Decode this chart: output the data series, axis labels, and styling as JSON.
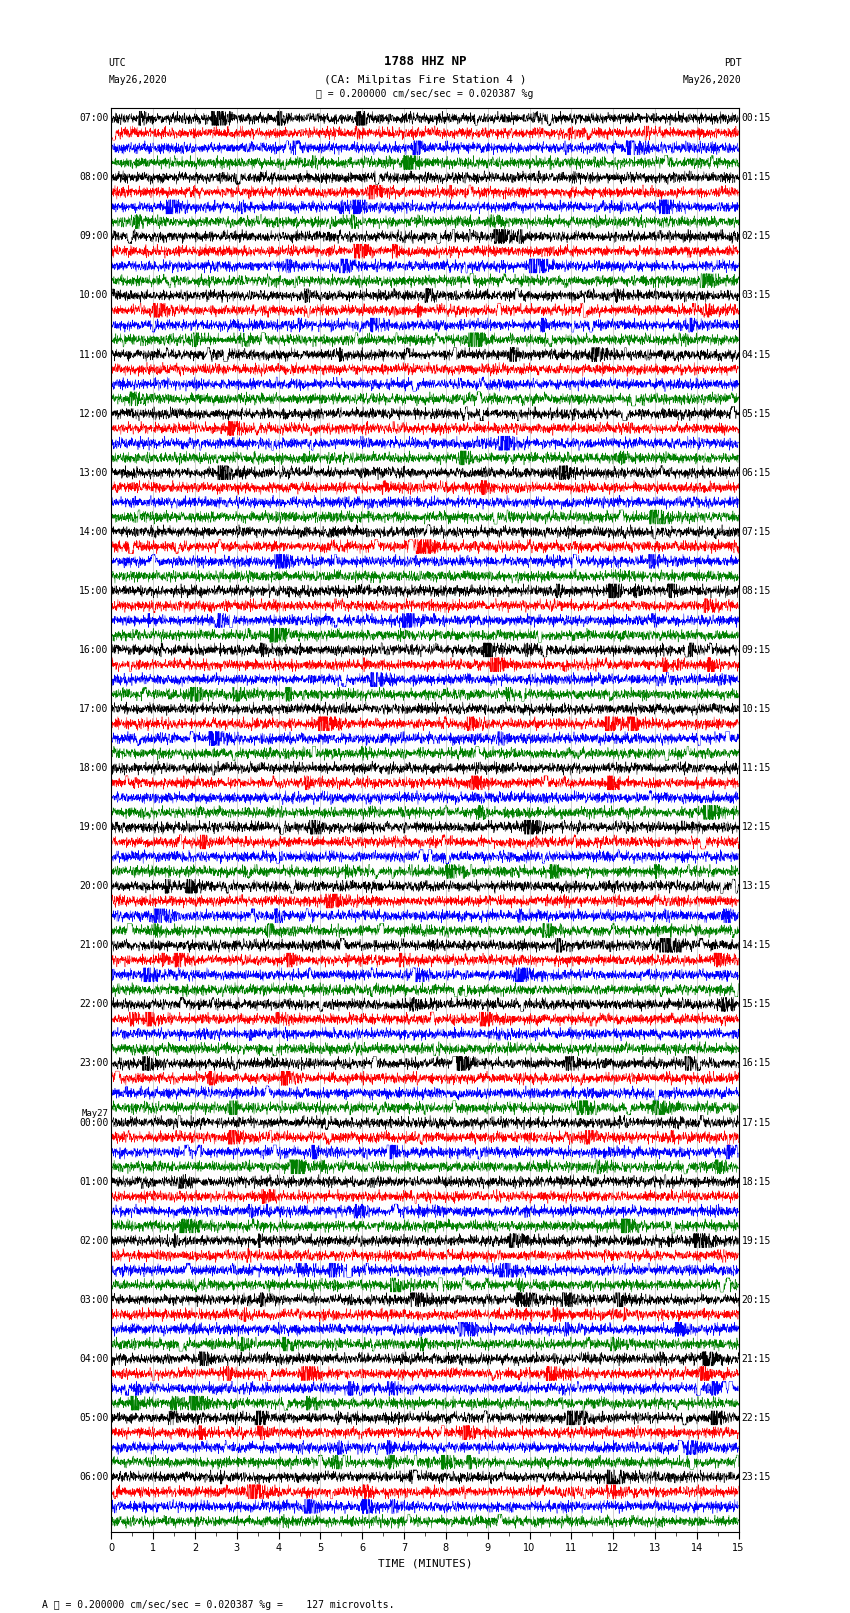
{
  "title_line1": "1788 HHZ NP",
  "title_line2": "(CA: Milpitas Fire Station 4 )",
  "scale_text": "= 0.200000 cm/sec/sec = 0.020387 %g",
  "footer_text": "= 0.200000 cm/sec/sec = 0.020387 %g =    127 microvolts.",
  "utc_label": "UTC",
  "pdt_label": "PDT",
  "date_left": "May26,2020",
  "date_right": "May26,2020",
  "xlabel": "TIME (MINUTES)",
  "xmin": 0,
  "xmax": 15,
  "bg_color": "#ffffff",
  "trace_colors_cycle": [
    "black",
    "red",
    "blue",
    "green"
  ],
  "num_traces": 96,
  "left_labels_hours": [
    7,
    8,
    9,
    10,
    11,
    12,
    13,
    14,
    15,
    16,
    17,
    18,
    19,
    20,
    21,
    22,
    23,
    0,
    1,
    2,
    3,
    4,
    5,
    6
  ],
  "right_labels_pdt": [
    "00:15",
    "01:15",
    "02:15",
    "03:15",
    "04:15",
    "05:15",
    "06:15",
    "07:15",
    "08:15",
    "09:15",
    "10:15",
    "11:15",
    "12:15",
    "13:15",
    "14:15",
    "15:15",
    "16:15",
    "17:15",
    "18:15",
    "19:15",
    "20:15",
    "21:15",
    "22:15",
    "23:15"
  ],
  "title_fontsize": 9,
  "label_fontsize": 7,
  "axis_fontsize": 7,
  "linewidth": 0.35
}
